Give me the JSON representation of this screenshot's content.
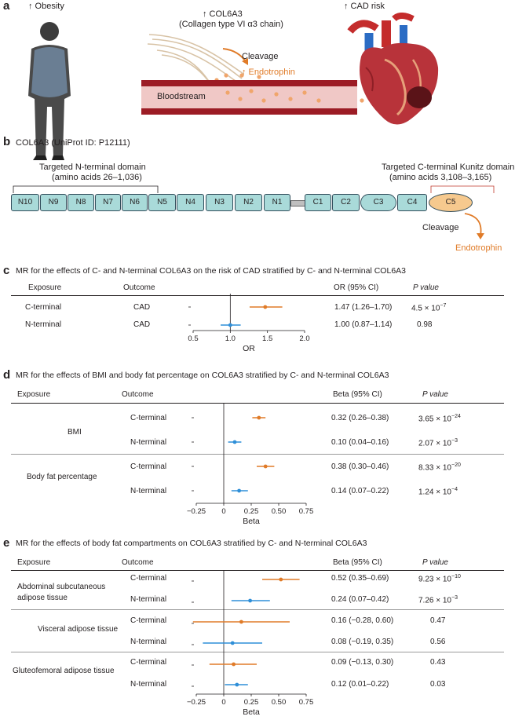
{
  "panel_a": {
    "letter": "a",
    "obesity": "↑ Obesity",
    "col6a3": "↑ COL6A3",
    "col6a3_desc": "(Collagen type VI α3 chain)",
    "cleavage": "Cleavage",
    "endotrophin": "↑ Endotrophin",
    "bloodstream": "Bloodstream",
    "cad_risk": "↑ CAD risk"
  },
  "panel_b": {
    "letter": "b",
    "title": "COL6A3 (UniProt ID: P12111)",
    "n_domain_label": "Targeted N-terminal domain",
    "n_domain_range": "(amino acids 26–1,036)",
    "c_domain_label": "Targeted C-terminal Kunitz domain",
    "c_domain_range": "(amino acids 3,108–3,165)",
    "domains": [
      "N10",
      "N9",
      "N8",
      "N7",
      "N6",
      "N5",
      "N4",
      "N3",
      "N2",
      "N1",
      "C1",
      "C2",
      "C3",
      "C4",
      "C5"
    ],
    "cleavage": "Cleavage",
    "endotrophin": "Endotrophin"
  },
  "panel_c": {
    "letter": "c",
    "title": "MR for the effects of C- and N-terminal COL6A3 on the risk of CAD stratified by C- and N-terminal COL6A3",
    "headers": {
      "exposure": "Exposure",
      "outcome": "Outcome",
      "estimate": "OR (95% CI)",
      "pvalue": "P value"
    },
    "rows": [
      {
        "exposure": "C-terminal",
        "outcome": "CAD",
        "est": "1.47 (1.26–1.70)",
        "p": "4.5 × 10",
        "p_exp": "−7"
      },
      {
        "exposure": "N-terminal",
        "outcome": "CAD",
        "est": "1.00 (0.87–1.14)",
        "p": "0.98",
        "p_exp": ""
      }
    ],
    "axis_label": "OR",
    "ticks": [
      "0.5",
      "1.0",
      "1.5",
      "2.0"
    ]
  },
  "panel_d": {
    "letter": "d",
    "title": "MR for the effects of BMI and body fat percentage on COL6A3 stratified by C- and N-terminal COL6A3",
    "headers": {
      "exposure": "Exposure",
      "outcome": "Outcome",
      "estimate": "Beta (95% CI)",
      "pvalue": "P value"
    },
    "groups": [
      {
        "exposure": "BMI",
        "rows": [
          {
            "outcome": "C-terminal",
            "est": "0.32 (0.26–0.38)",
            "p": "3.65 × 10",
            "p_exp": "−24"
          },
          {
            "outcome": "N-terminal",
            "est": "0.10 (0.04–0.16)",
            "p": "2.07 × 10",
            "p_exp": "−3"
          }
        ]
      },
      {
        "exposure": "Body fat percentage",
        "rows": [
          {
            "outcome": "C-terminal",
            "est": "0.38 (0.30–0.46)",
            "p": "8.33 × 10",
            "p_exp": "−20"
          },
          {
            "outcome": "N-terminal",
            "est": "0.14 (0.07–0.22)",
            "p": "1.24 × 10",
            "p_exp": "−4"
          }
        ]
      }
    ],
    "axis_label": "Beta",
    "ticks": [
      "−0.25",
      "0",
      "0.25",
      "0.50",
      "0.75"
    ]
  },
  "panel_e": {
    "letter": "e",
    "title": "MR for the effects of body fat compartments on COL6A3 stratified by C- and N-terminal COL6A3",
    "headers": {
      "exposure": "Exposure",
      "outcome": "Outcome",
      "estimate": "Beta (95% CI)",
      "pvalue": "P value"
    },
    "groups": [
      {
        "exposure_line1": "Abdominal subcutaneous",
        "exposure_line2": "adipose tissue",
        "rows": [
          {
            "outcome": "C-terminal",
            "est": "0.52 (0.35–0.69)",
            "p": "9.23 × 10",
            "p_exp": "−10"
          },
          {
            "outcome": "N-terminal",
            "est": "0.24 (0.07–0.42)",
            "p": "7.26 × 10",
            "p_exp": "−3"
          }
        ]
      },
      {
        "exposure_line1": "Visceral adipose tissue",
        "exposure_line2": "",
        "rows": [
          {
            "outcome": "C-terminal",
            "est": "0.16 (−0.28, 0.60)",
            "p": "0.47",
            "p_exp": ""
          },
          {
            "outcome": "N-terminal",
            "est": "0.08 (−0.19, 0.35)",
            "p": "0.56",
            "p_exp": ""
          }
        ]
      },
      {
        "exposure_line1": "Gluteofemoral adipose tissue",
        "exposure_line2": "",
        "rows": [
          {
            "outcome": "C-terminal",
            "est": "0.09 (−0.13, 0.30)",
            "p": "0.43",
            "p_exp": ""
          },
          {
            "outcome": "N-terminal",
            "est": "0.12 (0.01–0.22)",
            "p": "0.03",
            "p_exp": ""
          }
        ]
      }
    ],
    "axis_label": "Beta",
    "ticks": [
      "−0.25",
      "0",
      "0.25",
      "0.50",
      "0.75"
    ]
  },
  "colors": {
    "c_terminal": "#e07b28",
    "n_terminal": "#2f8fd8",
    "domain_fill": "#a9dad9",
    "c5_fill": "#f6c98e"
  },
  "chart_data": [
    {
      "type": "scatter",
      "panel": "c",
      "xlabel": "OR",
      "xlim": [
        0.5,
        2.0
      ],
      "reference": 1.0,
      "series": [
        {
          "name": "C-terminal",
          "points": [
            {
              "row": "CAD",
              "est": 1.47,
              "lo": 1.26,
              "hi": 1.7
            }
          ]
        },
        {
          "name": "N-terminal",
          "points": [
            {
              "row": "CAD",
              "est": 1.0,
              "lo": 0.87,
              "hi": 1.14
            }
          ]
        }
      ]
    },
    {
      "type": "scatter",
      "panel": "d",
      "xlabel": "Beta",
      "xlim": [
        -0.25,
        0.75
      ],
      "reference": 0,
      "series": [
        {
          "name": "C-terminal",
          "points": [
            {
              "row": "BMI",
              "est": 0.32,
              "lo": 0.26,
              "hi": 0.38
            },
            {
              "row": "Body fat percentage",
              "est": 0.38,
              "lo": 0.3,
              "hi": 0.46
            }
          ]
        },
        {
          "name": "N-terminal",
          "points": [
            {
              "row": "BMI",
              "est": 0.1,
              "lo": 0.04,
              "hi": 0.16
            },
            {
              "row": "Body fat percentage",
              "est": 0.14,
              "lo": 0.07,
              "hi": 0.22
            }
          ]
        }
      ]
    },
    {
      "type": "scatter",
      "panel": "e",
      "xlabel": "Beta",
      "xlim": [
        -0.25,
        0.75
      ],
      "reference": 0,
      "series": [
        {
          "name": "C-terminal",
          "points": [
            {
              "row": "Abdominal subcutaneous adipose tissue",
              "est": 0.52,
              "lo": 0.35,
              "hi": 0.69
            },
            {
              "row": "Visceral adipose tissue",
              "est": 0.16,
              "lo": -0.28,
              "hi": 0.6
            },
            {
              "row": "Gluteofemoral adipose tissue",
              "est": 0.09,
              "lo": -0.13,
              "hi": 0.3
            }
          ]
        },
        {
          "name": "N-terminal",
          "points": [
            {
              "row": "Abdominal subcutaneous adipose tissue",
              "est": 0.24,
              "lo": 0.07,
              "hi": 0.42
            },
            {
              "row": "Visceral adipose tissue",
              "est": 0.08,
              "lo": -0.19,
              "hi": 0.35
            },
            {
              "row": "Gluteofemoral adipose tissue",
              "est": 0.12,
              "lo": 0.01,
              "hi": 0.22
            }
          ]
        }
      ]
    }
  ]
}
